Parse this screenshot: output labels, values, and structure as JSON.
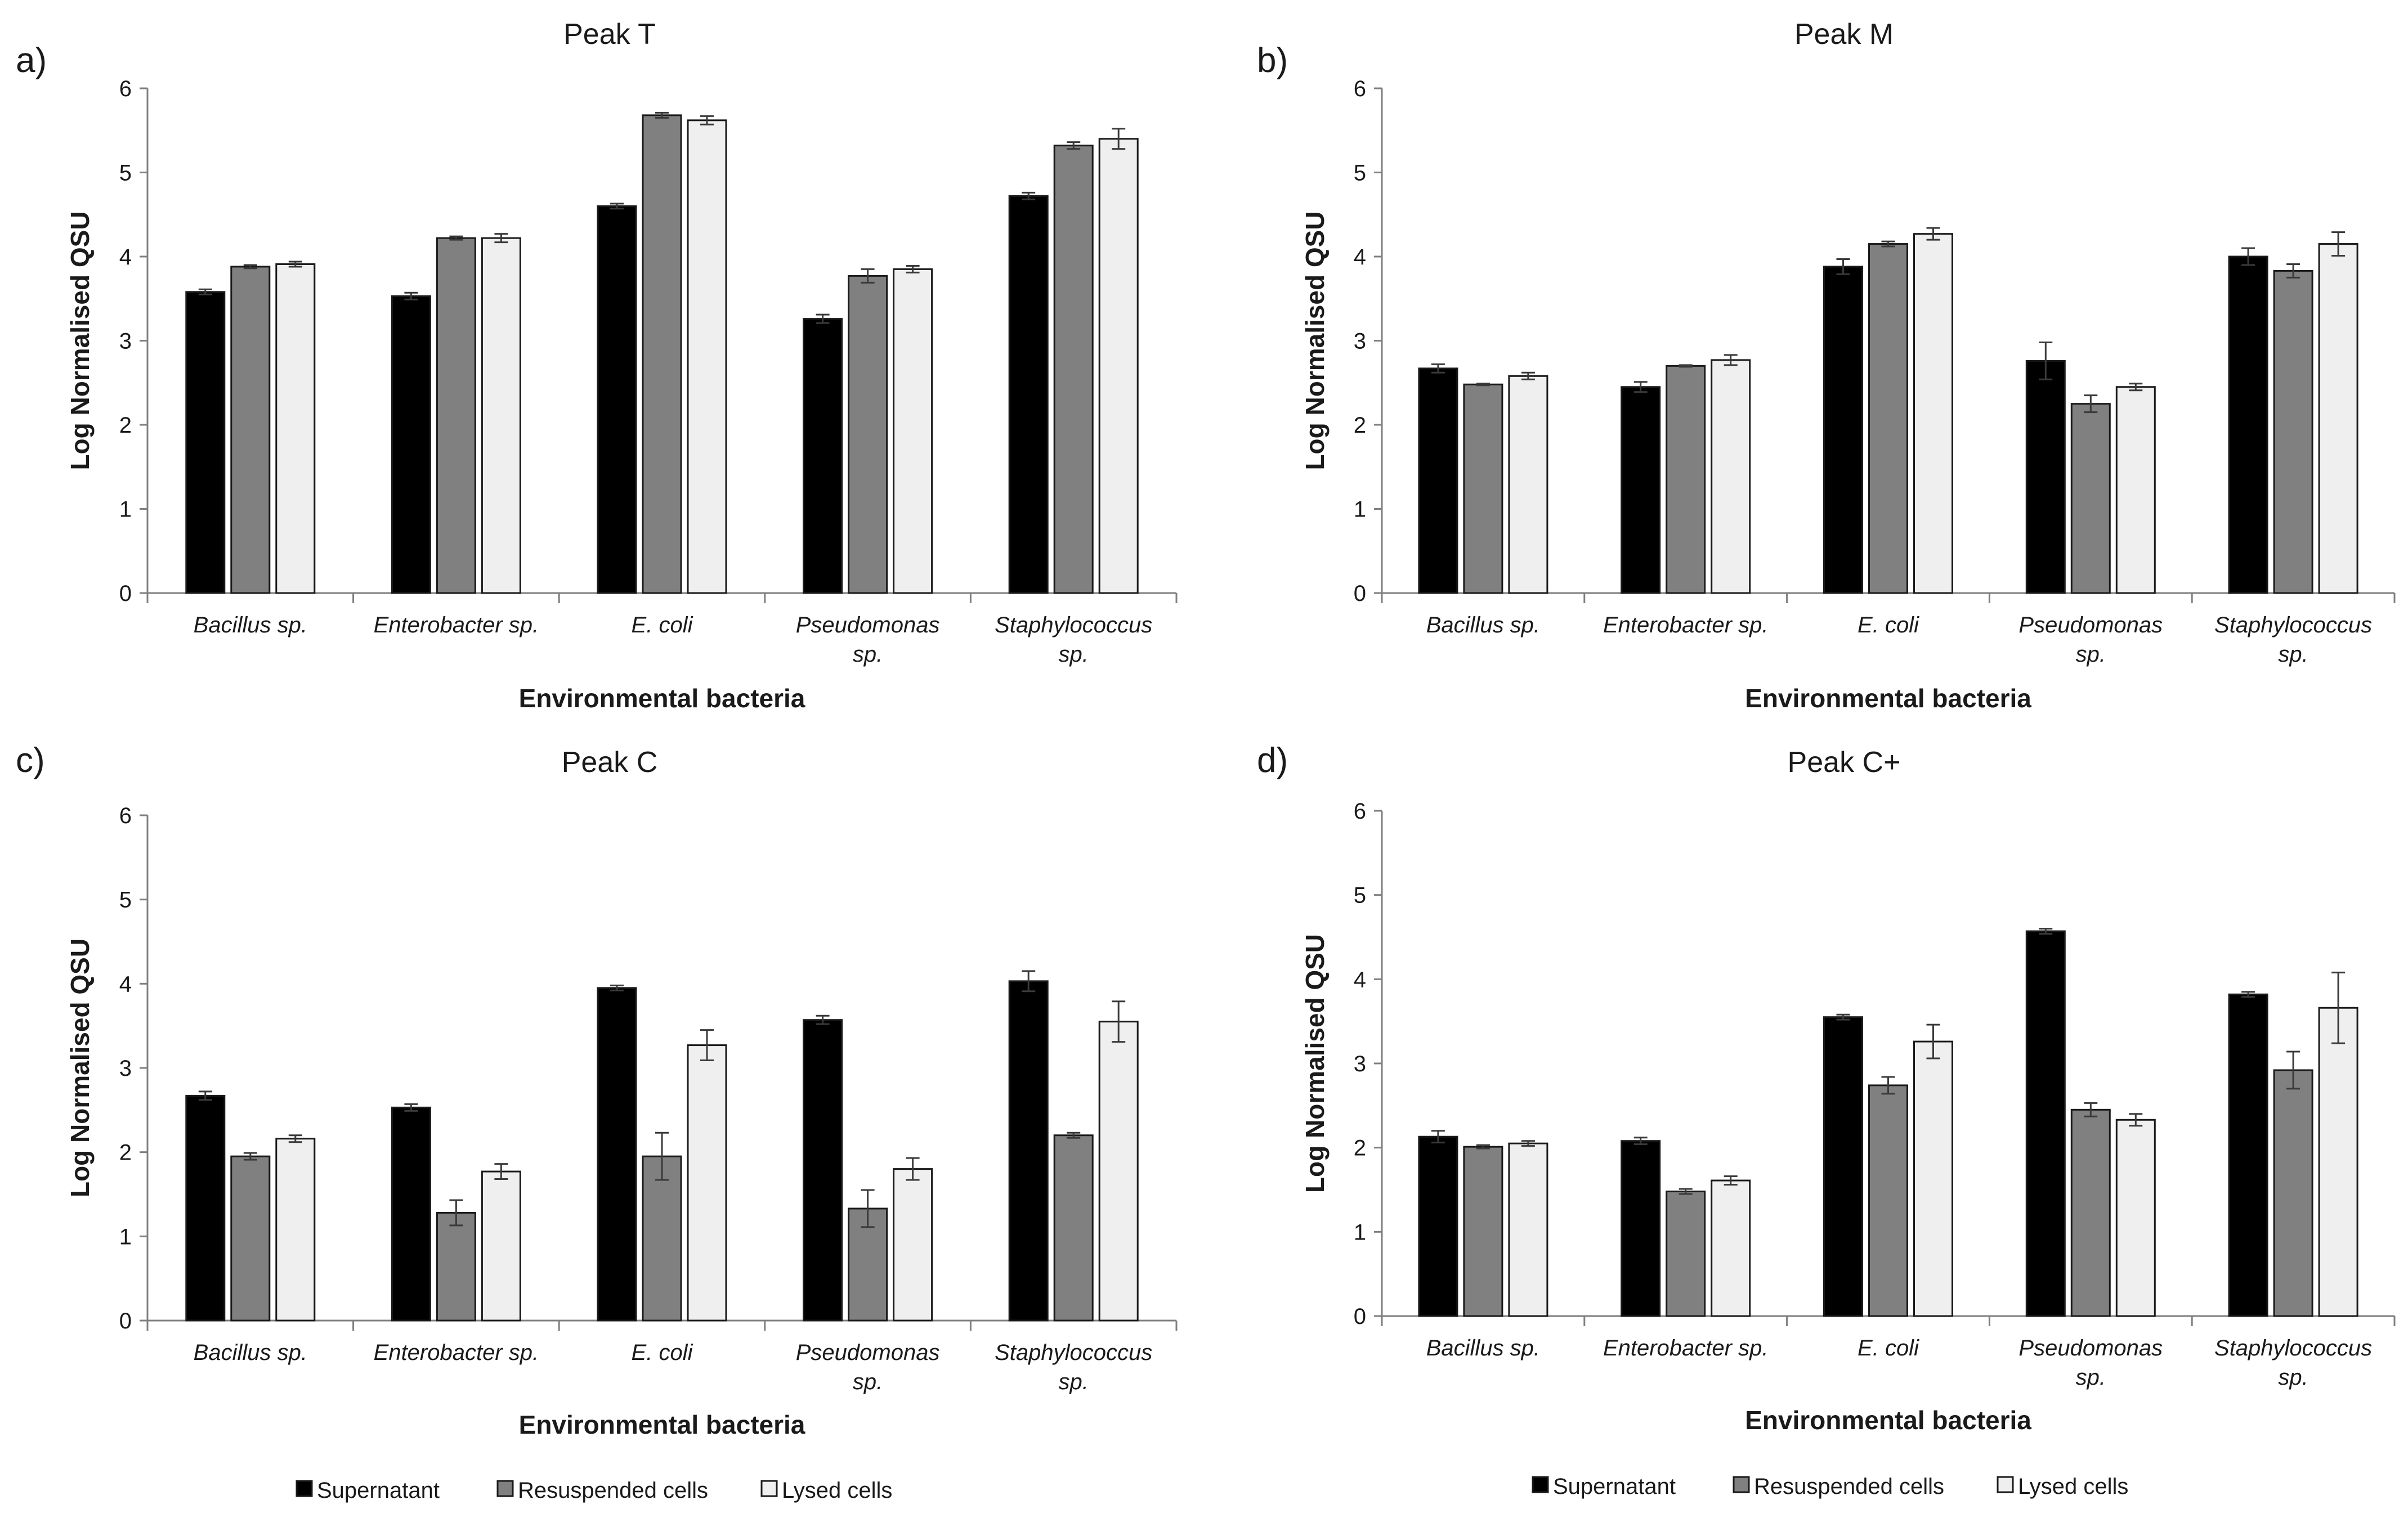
{
  "figure": {
    "legend": {
      "series": [
        "Supernatant",
        "Resuspended cells",
        "Lysed cells"
      ],
      "colors": [
        "#000000",
        "#808080",
        "#efefef"
      ],
      "stroke": "#1a1a1a"
    }
  },
  "chart_data": [
    {
      "panel": "a)",
      "type": "bar",
      "title": "Peak T",
      "xlabel": "Environmental bacteria",
      "ylabel": "Log Normalised QSU",
      "ylim": [
        0,
        6
      ],
      "yticks": [
        "0",
        "1",
        "2",
        "3",
        "4",
        "5",
        "6"
      ],
      "grid": false,
      "categories": [
        [
          "Bacillus sp."
        ],
        [
          "Enterobacter sp."
        ],
        [
          "E. coli"
        ],
        [
          "Pseudomonas",
          "sp."
        ],
        [
          "Staphylococcus",
          "sp."
        ]
      ],
      "series": [
        {
          "name": "Supernatant",
          "values": [
            3.58,
            3.53,
            4.6,
            3.26,
            4.72
          ],
          "errors": [
            0.03,
            0.04,
            0.03,
            0.05,
            0.04
          ]
        },
        {
          "name": "Resuspended cells",
          "values": [
            3.88,
            4.22,
            5.68,
            3.77,
            5.32
          ],
          "errors": [
            0.02,
            0.02,
            0.03,
            0.08,
            0.04
          ]
        },
        {
          "name": "Lysed cells",
          "values": [
            3.91,
            4.22,
            5.62,
            3.85,
            5.4
          ],
          "errors": [
            0.03,
            0.05,
            0.05,
            0.04,
            0.12
          ]
        }
      ]
    },
    {
      "panel": "b)",
      "type": "bar",
      "title": "Peak M",
      "xlabel": "Environmental bacteria",
      "ylabel": "Log Normalised QSU",
      "ylim": [
        0,
        6
      ],
      "yticks": [
        "0",
        "1",
        "2",
        "3",
        "4",
        "5",
        "6"
      ],
      "grid": false,
      "categories": [
        [
          "Bacillus sp."
        ],
        [
          "Enterobacter sp."
        ],
        [
          "E. coli"
        ],
        [
          "Pseudomonas",
          "sp."
        ],
        [
          "Staphylococcus",
          "sp."
        ]
      ],
      "series": [
        {
          "name": "Supernatant",
          "values": [
            2.67,
            2.45,
            3.88,
            2.76,
            4.0
          ],
          "errors": [
            0.05,
            0.06,
            0.09,
            0.22,
            0.1
          ]
        },
        {
          "name": "Resuspended cells",
          "values": [
            2.48,
            2.7,
            4.15,
            2.25,
            3.83
          ],
          "errors": [
            0.01,
            0.01,
            0.03,
            0.1,
            0.08
          ]
        },
        {
          "name": "Lysed cells",
          "values": [
            2.58,
            2.77,
            4.27,
            2.45,
            4.15
          ],
          "errors": [
            0.04,
            0.06,
            0.07,
            0.04,
            0.14
          ]
        }
      ]
    },
    {
      "panel": "c)",
      "type": "bar",
      "title": "Peak C",
      "xlabel": "Environmental bacteria",
      "ylabel": "Log Normalised QSU",
      "ylim": [
        0,
        6
      ],
      "yticks": [
        "0",
        "1",
        "2",
        "3",
        "4",
        "5",
        "6"
      ],
      "grid": false,
      "categories": [
        [
          "Bacillus sp."
        ],
        [
          "Enterobacter sp."
        ],
        [
          "E. coli"
        ],
        [
          "Pseudomonas",
          "sp."
        ],
        [
          "Staphylococcus",
          "sp."
        ]
      ],
      "series": [
        {
          "name": "Supernatant",
          "values": [
            2.67,
            2.53,
            3.95,
            3.57,
            4.03
          ],
          "errors": [
            0.05,
            0.04,
            0.03,
            0.05,
            0.12
          ]
        },
        {
          "name": "Resuspended cells",
          "values": [
            1.95,
            1.28,
            1.95,
            1.33,
            2.2
          ],
          "errors": [
            0.04,
            0.15,
            0.28,
            0.22,
            0.03
          ]
        },
        {
          "name": "Lysed cells",
          "values": [
            2.16,
            1.77,
            3.27,
            1.8,
            3.55
          ],
          "errors": [
            0.04,
            0.09,
            0.18,
            0.13,
            0.24
          ]
        }
      ]
    },
    {
      "panel": "d)",
      "type": "bar",
      "title": "Peak C+",
      "xlabel": "Environmental bacteria",
      "ylabel": "Log Normalised QSU",
      "ylim": [
        0,
        6
      ],
      "yticks": [
        "0",
        "1",
        "2",
        "3",
        "4",
        "5",
        "6"
      ],
      "grid": false,
      "categories": [
        [
          "Bacillus sp."
        ],
        [
          "Enterobacter sp."
        ],
        [
          "E. coli"
        ],
        [
          "Pseudomonas",
          "sp."
        ],
        [
          "Staphylococcus",
          "sp."
        ]
      ],
      "series": [
        {
          "name": "Supernatant",
          "values": [
            2.13,
            2.08,
            3.55,
            4.57,
            3.82
          ],
          "errors": [
            0.07,
            0.04,
            0.03,
            0.03,
            0.03
          ]
        },
        {
          "name": "Resuspended cells",
          "values": [
            2.01,
            1.48,
            2.74,
            2.45,
            2.92
          ],
          "errors": [
            0.02,
            0.03,
            0.1,
            0.08,
            0.22
          ]
        },
        {
          "name": "Lysed cells",
          "values": [
            2.05,
            1.61,
            3.26,
            2.33,
            3.66
          ],
          "errors": [
            0.03,
            0.05,
            0.2,
            0.07,
            0.42
          ]
        }
      ]
    }
  ]
}
